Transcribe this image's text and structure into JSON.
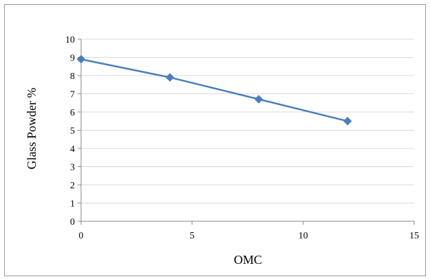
{
  "chart_data": {
    "type": "line",
    "title": "",
    "xlabel": "OMC",
    "ylabel": "Glass Powder %",
    "xlim": [
      0,
      15
    ],
    "ylim": [
      0,
      10
    ],
    "xticks": [
      0,
      5,
      10,
      15
    ],
    "yticks": [
      0,
      1,
      2,
      3,
      4,
      5,
      6,
      7,
      8,
      9,
      10
    ],
    "grid": "horizontal",
    "legend": "none",
    "marker": "diamond",
    "series_color": "#4a7ebb",
    "series": [
      {
        "x": [
          0,
          4,
          8,
          12
        ],
        "values": [
          8.9,
          7.9,
          6.7,
          5.5
        ]
      }
    ]
  }
}
